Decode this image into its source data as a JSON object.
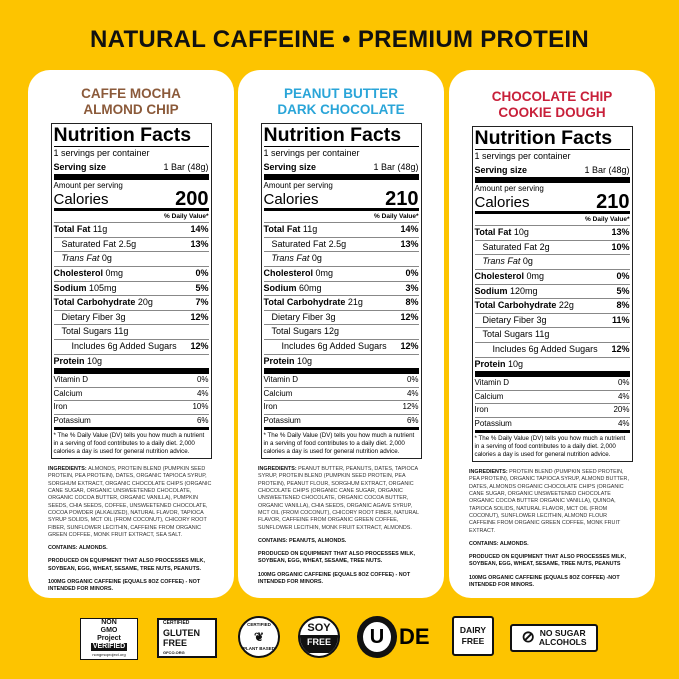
{
  "headline": "NATURAL CAFFEINE • PREMIUM PROTEIN",
  "colors": {
    "background": "#fdc400",
    "caffe_mocha": "#8b5a3a",
    "peanut_butter": "#2aa5d8",
    "cookie_dough": "#c8203a"
  },
  "label_common": {
    "title": "Nutrition Facts",
    "servings": "1 servings per container",
    "serving_size_label": "Serving size",
    "serving_size": "1 Bar (48g)",
    "amount_per_serving": "Amount per serving",
    "calories_label": "Calories",
    "daily_value": "% Daily Value*",
    "footnote": "* The % Daily Value (DV) tells you how much a nutrient in a serving of food contributes to a daily diet. 2,000 calories a day is used for general nutrition advice."
  },
  "products": [
    {
      "flavor": [
        "CAFFE MOCHA",
        "ALMOND CHIP"
      ],
      "color_key": "caffe_mocha",
      "calories": "200",
      "rows": [
        [
          "Total Fat",
          "11g",
          "14%"
        ],
        [
          "Saturated Fat",
          "2.5g",
          "13%"
        ],
        [
          "Trans Fat",
          "0g",
          ""
        ],
        [
          "Cholesterol",
          "0mg",
          "0%"
        ],
        [
          "Sodium",
          "105mg",
          "5%"
        ],
        [
          "Total Carbohydrate",
          "20g",
          "7%"
        ],
        [
          "Dietary Fiber",
          "3g",
          "12%"
        ],
        [
          "Total Sugars",
          "11g",
          ""
        ],
        [
          "Includes 6g Added Sugars",
          "",
          "12%"
        ],
        [
          "Protein",
          "10g",
          ""
        ]
      ],
      "vitamins": [
        [
          "Vitamin D",
          "0%"
        ],
        [
          "Calcium",
          "4%"
        ],
        [
          "Iron",
          "10%"
        ],
        [
          "Potassium",
          "6%"
        ]
      ],
      "ingredients": "ALMONDS, PROTEIN BLEND (PUMPKIN SEED PROTEIN, PEA PROTEIN), DATES, ORGANIC TAPIOCA SYRUP, SORGHUM EXTRACT, ORGANIC CHOCOLATE CHIPS (ORGANIC CANE SUGAR, ORGANIC UNSWEETENED CHOCOLATE, ORGANIC COCOA BUTTER, ORGANIC VANILLA), PUMPKIN SEEDS, CHIA SEEDS, COFFEE, UNSWEETENED CHOCOLATE, COCOA POWDER (ALKALIZED), NATURAL FLAVOR, TAPIOCA SYRUP SOLIDS, MCT OIL (FROM COCONUT), CHICORY ROOT FIBER, SUNFLOWER LECITHIN, CAFFEINE FROM ORGANIC GREEN COFFEE, MONK FRUIT EXTRACT, SEA SALT.",
      "contains": "CONTAINS: ALMONDS.",
      "equipment": "PRODUCED ON EQUIPMENT THAT ALSO PROCESSES MILK, SOYBEAN, EGG, WHEAT, SESAME, TREE NUTS, PEANUTS.",
      "caffeine": "100MG ORGANIC CAFFEINE (EQUALS 8OZ COFFEE) - NOT INTENDED FOR MINORS."
    },
    {
      "flavor": [
        "PEANUT BUTTER",
        "DARK CHOCOLATE"
      ],
      "color_key": "peanut_butter",
      "calories": "210",
      "rows": [
        [
          "Total Fat",
          "11g",
          "14%"
        ],
        [
          "Saturated Fat",
          "2.5g",
          "13%"
        ],
        [
          "Trans Fat",
          "0g",
          ""
        ],
        [
          "Cholesterol",
          "0mg",
          "0%"
        ],
        [
          "Sodium",
          "60mg",
          "3%"
        ],
        [
          "Total Carbohydrate",
          "21g",
          "8%"
        ],
        [
          "Dietary Fiber",
          "3g",
          "12%"
        ],
        [
          "Total Sugars",
          "12g",
          ""
        ],
        [
          "Includes 6g Added Sugars",
          "",
          "12%"
        ],
        [
          "Protein",
          "10g",
          ""
        ]
      ],
      "vitamins": [
        [
          "Vitamin D",
          "0%"
        ],
        [
          "Calcium",
          "4%"
        ],
        [
          "Iron",
          "12%"
        ],
        [
          "Potassium",
          "6%"
        ]
      ],
      "ingredients": "PEANUT BUTTER, PEANUTS, DATES, TAPIOCA SYRUP, PROTEIN BLEND (PUMPKIN SEED PROTEIN, PEA PROTEIN), PEANUT FLOUR, SORGHUM EXTRACT, ORGANIC CHOCOLATE CHIPS (ORGANIC CANE SUGAR, ORGANIC UNSWEETENED CHOCOLATE, ORGANIC COCOA BUTTER, ORGANIC VANILLA), CHIA SEEDS, ORGANIC AGAVE SYRUP, MCT OIL (FROM COCONUT), CHICORY ROOT FIBER, NATURAL FLAVOR, CAFFEINE FROM ORGANIC GREEN COFFEE, SUNFLOWER LECITHIN, MONK FRUIT EXTRACT, ALMONDS.",
      "contains": "CONTAINS: PEANUTS, ALMONDS.",
      "equipment": "PRODUCED ON EQUIPMENT THAT ALSO PROCESSES MILK, SOYBEAN, EGG, WHEAT, SESAME, TREE NUTS.",
      "caffeine": "100MG ORGANIC CAFFEINE (EQUALS 8OZ COFFEE) - NOT INTENDED FOR MINORS."
    },
    {
      "flavor": [
        "CHOCOLATE CHIP",
        "COOKIE DOUGH"
      ],
      "color_key": "cookie_dough",
      "calories": "210",
      "rows": [
        [
          "Total Fat",
          "10g",
          "13%"
        ],
        [
          "Saturated Fat",
          "2g",
          "10%"
        ],
        [
          "Trans Fat",
          "0g",
          ""
        ],
        [
          "Cholesterol",
          "0mg",
          "0%"
        ],
        [
          "Sodium",
          "120mg",
          "5%"
        ],
        [
          "Total Carbohydrate",
          "22g",
          "8%"
        ],
        [
          "Dietary Fiber",
          "3g",
          "11%"
        ],
        [
          "Total Sugars",
          "11g",
          ""
        ],
        [
          "Includes 6g Added Sugars",
          "",
          "12%"
        ],
        [
          "Protein",
          "10g",
          ""
        ]
      ],
      "vitamins": [
        [
          "Vitamin D",
          "0%"
        ],
        [
          "Calcium",
          "4%"
        ],
        [
          "Iron",
          "20%"
        ],
        [
          "Potassium",
          "4%"
        ]
      ],
      "ingredients": "PROTEIN BLEND (PUMPKIN SEED PROTEIN, PEA PROTEIN), ORGANIC TAPIOCA SYRUP, ALMOND BUTTER, DATES, ALMONDS ORGANIC CHOCOLATE CHIPS (ORGANIC CANE SUGAR, ORGANIC UNSWEETENED CHOCOLATE ORGANIC COCOA BUTTER ORGANIC VANILLA), QUINOA, TAPIOCA SOLIDS, NATURAL FLAVOR, MCT OIL (FROM COCONUT), SUNFLOWER LECITHIN, ALMOND FLOUR CAFFEINE FROM ORGANIC GREEN COFFEE, MONK FRUIT EXTRACT.",
      "contains": "CONTAINS: ALMONDS.",
      "equipment": "PRODUCED ON EQUIPMENT THAT ALSO PROCESSES MILK, SOYBEAN, EGG, WHEAT, SESAME, TREE NUTS, PEANUTS",
      "caffeine": "100MG ORGANIC CAFFEINE (EQUALS 8OZ COFFEE) -NOT INTENDED FOR MINORS."
    }
  ],
  "ingredients_label": "INGREDIENTS:",
  "badges": [
    {
      "icon": "non-gmo-icon",
      "lines": [
        "NON",
        "GMO",
        "Project",
        "VERIFIED",
        "nongmoproject.org"
      ]
    },
    {
      "icon": "gluten-free-icon",
      "lines": [
        "CERTIFIED",
        "GLUTEN",
        "FREE",
        "GFCO.ORG"
      ]
    },
    {
      "icon": "plant-based-icon",
      "lines": [
        "CERTIFIED",
        "PLANT BASED"
      ]
    },
    {
      "icon": "soy-free-icon",
      "lines": [
        "SOY",
        "FREE"
      ]
    },
    {
      "icon": "kosher-ou-icon",
      "lines": [
        "U",
        "DE"
      ]
    },
    {
      "icon": "dairy-free-icon",
      "lines": [
        "DAIRY",
        "FREE"
      ]
    },
    {
      "icon": "no-sugar-alcohols-icon",
      "lines": [
        "NO SUGAR",
        "ALCOHOLS"
      ]
    }
  ]
}
